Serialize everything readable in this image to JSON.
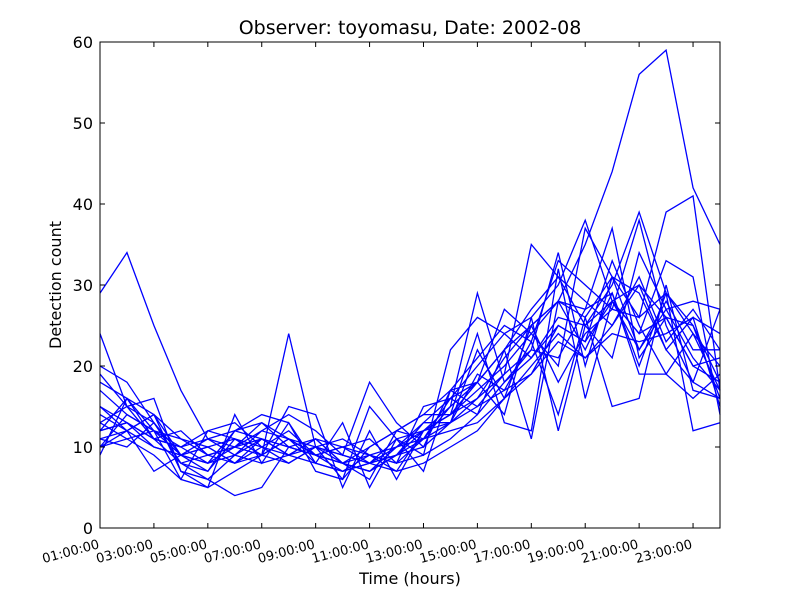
{
  "chart_data": {
    "type": "line",
    "title": "Observer: toyomasu, Date: 2002-08",
    "xlabel": "Time (hours)",
    "ylabel": "Detection count",
    "ylim": [
      0,
      60
    ],
    "yticks": [
      0,
      10,
      20,
      30,
      40,
      50,
      60
    ],
    "xlim": [
      1,
      24
    ],
    "xtick_values": [
      1,
      3,
      5,
      7,
      9,
      11,
      13,
      15,
      17,
      19,
      21,
      23
    ],
    "xtick_labels": [
      "01:00:00",
      "03:00:00",
      "05:00:00",
      "07:00:00",
      "09:00:00",
      "11:00:00",
      "13:00:00",
      "15:00:00",
      "17:00:00",
      "19:00:00",
      "21:00:00",
      "23:00:00"
    ],
    "grid": false,
    "line_color": "#0000ff",
    "x": [
      1,
      2,
      3,
      4,
      5,
      6,
      7,
      8,
      9,
      10,
      11,
      12,
      13,
      14,
      15,
      16,
      17,
      18,
      19,
      20,
      21,
      22,
      23,
      24
    ],
    "series": [
      {
        "values": [
          29,
          34,
          25,
          17,
          11,
          10,
          9,
          11,
          9,
          8,
          9,
          10,
          12,
          14,
          18,
          22,
          25,
          28,
          35,
          44,
          56,
          59,
          42,
          35
        ]
      },
      {
        "values": [
          24,
          15,
          13,
          8,
          7,
          11,
          9,
          24,
          10,
          9,
          8,
          10,
          13,
          16,
          20,
          24,
          26,
          30,
          38,
          28,
          24,
          33,
          31,
          14
        ]
      },
      {
        "values": [
          20,
          18,
          13,
          8,
          6,
          9,
          12,
          11,
          8,
          7,
          8,
          9,
          12,
          15,
          18,
          22,
          27,
          31,
          25,
          30,
          39,
          29,
          24,
          17
        ]
      },
      {
        "values": [
          19,
          15,
          11,
          10,
          12,
          13,
          10,
          9,
          11,
          8,
          10,
          12,
          14,
          17,
          21,
          25,
          23,
          33,
          30,
          27,
          26,
          29,
          25,
          16
        ]
      },
      {
        "values": [
          18,
          16,
          12,
          9,
          8,
          10,
          11,
          10,
          9,
          8,
          7,
          9,
          11,
          13,
          16,
          19,
          35,
          31,
          28,
          25,
          30,
          22,
          18,
          27
        ]
      },
      {
        "values": [
          15,
          13,
          10,
          9,
          10,
          11,
          9,
          8,
          10,
          9,
          8,
          7,
          12,
          14,
          17,
          20,
          24,
          28,
          26,
          31,
          26,
          39,
          41,
          17
        ]
      },
      {
        "values": [
          14,
          12,
          14,
          11,
          9,
          8,
          10,
          12,
          9,
          7,
          9,
          8,
          11,
          15,
          29,
          18,
          22,
          34,
          20,
          31,
          29,
          22,
          26,
          15
        ]
      },
      {
        "values": [
          13,
          11,
          12,
          10,
          8,
          9,
          11,
          10,
          9,
          10,
          8,
          9,
          10,
          13,
          15,
          17,
          19,
          25,
          23,
          28,
          22,
          27,
          28,
          27
        ]
      },
      {
        "values": [
          12,
          16,
          11,
          10,
          11,
          9,
          8,
          9,
          11,
          10,
          9,
          8,
          15,
          16,
          14,
          22,
          11,
          28,
          22,
          29,
          20,
          29,
          12,
          13
        ]
      },
      {
        "values": [
          11,
          10,
          13,
          9,
          10,
          8,
          9,
          11,
          10,
          8,
          7,
          10,
          11,
          12,
          13,
          16,
          20,
          24,
          21,
          25,
          31,
          23,
          27,
          22
        ]
      },
      {
        "values": [
          10,
          12,
          14,
          9,
          7,
          12,
          11,
          9,
          8,
          7,
          8,
          11,
          12,
          14,
          16,
          21,
          25,
          28,
          27,
          37,
          21,
          26,
          20,
          18
        ]
      },
      {
        "values": [
          9,
          16,
          14,
          7,
          5,
          14,
          8,
          13,
          7,
          6,
          15,
          11,
          9,
          22,
          26,
          24,
          21,
          25,
          23,
          33,
          25,
          19,
          24,
          20
        ]
      },
      {
        "values": [
          12,
          13,
          11,
          8,
          9,
          10,
          12,
          14,
          12,
          9,
          18,
          13,
          10,
          17,
          18,
          27,
          24,
          20,
          37,
          31,
          22,
          28,
          22,
          22
        ]
      },
      {
        "values": [
          10,
          11,
          9,
          6,
          12,
          11,
          10,
          8,
          10,
          6,
          10,
          12,
          14,
          14,
          24,
          13,
          12,
          32,
          16,
          28,
          30,
          26,
          25,
          18
        ]
      },
      {
        "values": [
          11,
          12,
          10,
          9,
          8,
          12,
          13,
          10,
          9,
          8,
          7,
          9,
          13,
          13,
          19,
          17,
          23,
          14,
          26,
          15,
          16,
          30,
          17,
          16
        ]
      },
      {
        "values": [
          13,
          15,
          16,
          7,
          6,
          4,
          5,
          10,
          11,
          8,
          6,
          12,
          11,
          16,
          18,
          14,
          26,
          12,
          25,
          21,
          34,
          27,
          21,
          17
        ]
      },
      {
        "values": [
          10,
          14,
          12,
          6,
          5,
          7,
          9,
          15,
          14,
          5,
          12,
          6,
          12,
          13,
          22,
          16,
          25,
          18,
          24,
          27,
          38,
          25,
          18,
          16
        ]
      },
      {
        "values": [
          15,
          12,
          7,
          9,
          11,
          12,
          14,
          13,
          8,
          13,
          5,
          11,
          7,
          17,
          15,
          19,
          22,
          21,
          27,
          29,
          19,
          19,
          16,
          19
        ]
      },
      {
        "values": [
          17,
          14,
          12,
          11,
          10,
          8,
          11,
          9,
          10,
          11,
          9,
          7,
          8,
          10,
          12,
          16,
          19,
          23,
          21,
          24,
          23,
          24,
          26,
          24
        ]
      },
      {
        "values": [
          12,
          13,
          11,
          12,
          9,
          10,
          13,
          11,
          9,
          10,
          11,
          8,
          9,
          11,
          14,
          18,
          21,
          26,
          25,
          28,
          24,
          26,
          20,
          21
        ]
      }
    ]
  }
}
